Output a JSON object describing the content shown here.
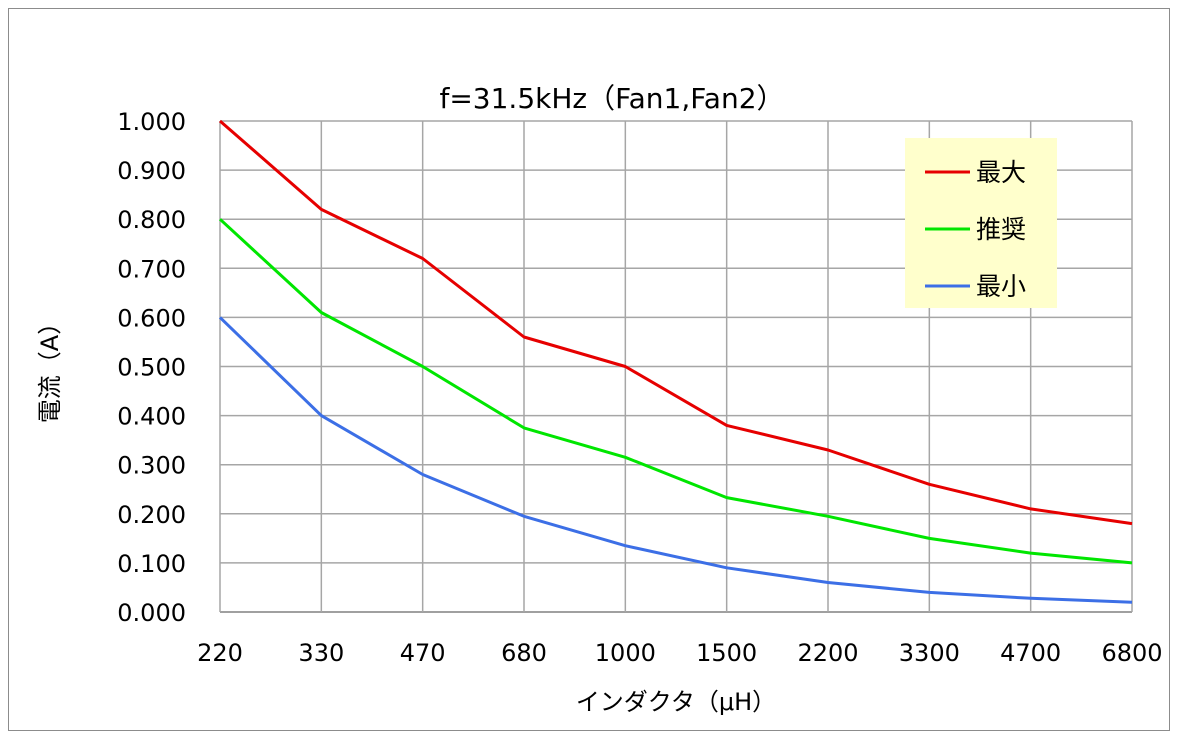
{
  "chart_data": {
    "type": "line",
    "title": "f=31.5kHz（Fan1,Fan2）",
    "xlabel": "インダクタ（μH）",
    "ylabel": "電流（A）",
    "categories": [
      "220",
      "330",
      "470",
      "680",
      "1000",
      "1500",
      "2200",
      "3300",
      "4700",
      "6800"
    ],
    "ylim": [
      0,
      1.0
    ],
    "yticks": [
      "0.000",
      "0.100",
      "0.200",
      "0.300",
      "0.400",
      "0.500",
      "0.600",
      "0.700",
      "0.800",
      "0.900",
      "1.000"
    ],
    "grid": true,
    "legend_position": "top-right",
    "series": [
      {
        "name": "最大",
        "color": "#e60000",
        "values": [
          1.0,
          0.82,
          0.72,
          0.56,
          0.5,
          0.38,
          0.33,
          0.26,
          0.21,
          0.18
        ]
      },
      {
        "name": "推奨",
        "color": "#00e600",
        "values": [
          0.8,
          0.61,
          0.5,
          0.375,
          0.315,
          0.233,
          0.195,
          0.15,
          0.12,
          0.1
        ]
      },
      {
        "name": "最小",
        "color": "#3c6fe6",
        "values": [
          0.6,
          0.4,
          0.28,
          0.195,
          0.135,
          0.09,
          0.06,
          0.04,
          0.028,
          0.02
        ]
      }
    ]
  }
}
